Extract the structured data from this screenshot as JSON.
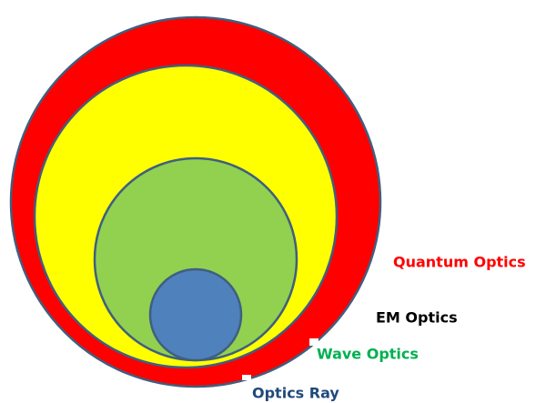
{
  "layers": [
    {
      "label": "Quantum Optics"
    },
    {
      "label": "EM Optics"
    },
    {
      "label": "Wave Optics"
    },
    {
      "label": "Optics Ray"
    }
  ]
}
